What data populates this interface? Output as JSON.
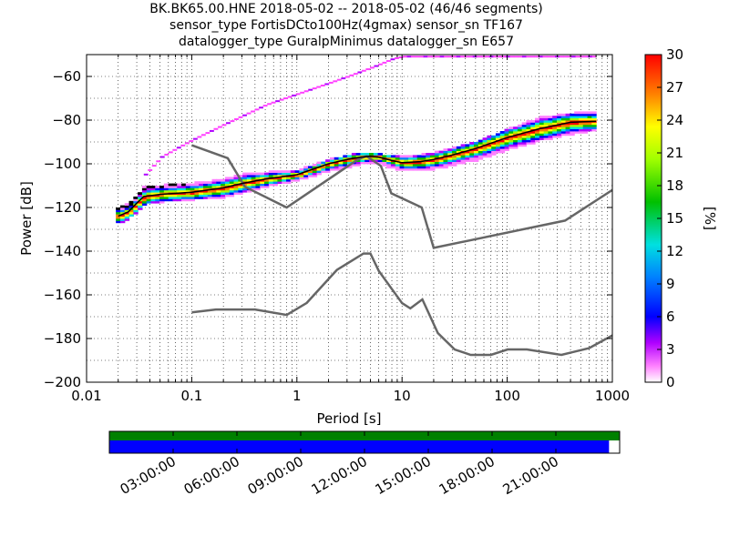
{
  "chart_data": {
    "type": "heatmap",
    "title_lines": [
      "BK.BK65.00.HNE   2018-05-02 -- 2018-05-02  (46/46 segments)",
      "sensor_type FortisDCto100Hz(4gmax) sensor_sn TF167",
      "datalogger_type GuralpMinimus datalogger_sn E657"
    ],
    "xlabel": "Period [s]",
    "ylabel": "Power [dB]",
    "x_scale": "log",
    "xlim": [
      0.01,
      1000
    ],
    "ylim": [
      -200,
      -50
    ],
    "x_ticks": [
      0.01,
      0.1,
      1,
      10,
      100,
      1000
    ],
    "x_tick_labels": [
      "0.01",
      "0.1",
      "1",
      "10",
      "100",
      "1000"
    ],
    "y_ticks": [
      -200,
      -180,
      -160,
      -140,
      -120,
      -100,
      -80,
      -60
    ],
    "y_tick_labels": [
      "−200",
      "−180",
      "−160",
      "−140",
      "−120",
      "−100",
      "−80",
      "−60"
    ],
    "grid": true,
    "colorbar": {
      "label": "[%]",
      "range": [
        0,
        30
      ],
      "ticks": [
        "0",
        "3",
        "6",
        "9",
        "12",
        "15",
        "18",
        "21",
        "24",
        "27",
        "30"
      ]
    },
    "noise_models": [
      {
        "name": "",
        "x": [
          0.1,
          0.17,
          0.4,
          0.8,
          1.24,
          2.4,
          4.3,
          5.0,
          6.0,
          10.0,
          12.0,
          15.6,
          21.9,
          31.6,
          45.0,
          70.0,
          101.0,
          154.0,
          328.0,
          600.0,
          1000.0
        ],
        "y": [
          -168.0,
          -166.7,
          -166.7,
          -169.2,
          -163.7,
          -148.6,
          -141.1,
          -141.1,
          -149.0,
          -163.8,
          -166.2,
          -162.1,
          -177.5,
          -185.0,
          -187.5,
          -187.5,
          -185.0,
          -185.0,
          -187.5,
          -184.4,
          -178.6
        ]
      },
      {
        "name": "",
        "x": [
          0.1,
          0.22,
          0.32,
          0.8,
          3.8,
          4.6,
          6.3,
          7.9,
          15.4,
          20.0,
          354.8,
          1000.0
        ],
        "y": [
          -91.5,
          -97.4,
          -110.5,
          -120.0,
          -98.0,
          -96.5,
          -101.0,
          -113.5,
          -120.0,
          -138.5,
          -126.0,
          -112.0
        ]
      }
    ],
    "ppsd_mode": {
      "x": [
        0.02,
        0.025,
        0.03,
        0.035,
        0.05,
        0.1,
        0.2,
        0.3,
        0.5,
        1.0,
        2.0,
        3.0,
        4.0,
        5.0,
        6.0,
        8.0,
        10.0,
        15.0,
        20.0,
        30.0,
        50.0,
        100.0,
        200.0,
        400.0,
        700.0
      ],
      "y": [
        -124.0,
        -122.0,
        -118.0,
        -115.0,
        -114.0,
        -113.0,
        -111.0,
        -109.0,
        -107.0,
        -105.0,
        -100.0,
        -98.0,
        -97.0,
        -96.5,
        -97.0,
        -98.5,
        -99.5,
        -99.0,
        -98.0,
        -96.0,
        -93.0,
        -88.0,
        -84.0,
        -81.0,
        -80.5
      ]
    },
    "ppsd_spread": [
      {
        "x": 0.02,
        "lo": -127,
        "hi": -120
      },
      {
        "x": 0.025,
        "lo": -124,
        "hi": -118
      },
      {
        "x": 0.03,
        "lo": -121,
        "hi": -114
      },
      {
        "x": 0.035,
        "lo": -118,
        "hi": -110
      },
      {
        "x": 0.05,
        "lo": -117,
        "hi": -110
      },
      {
        "x": 0.1,
        "lo": -116,
        "hi": -109
      },
      {
        "x": 0.2,
        "lo": -115,
        "hi": -107
      },
      {
        "x": 0.3,
        "lo": -113,
        "hi": -105
      },
      {
        "x": 0.5,
        "lo": -110,
        "hi": -104
      },
      {
        "x": 1.0,
        "lo": -107,
        "hi": -103
      },
      {
        "x": 2.0,
        "lo": -103,
        "hi": -98
      },
      {
        "x": 4.0,
        "lo": -100,
        "hi": -95
      },
      {
        "x": 6.0,
        "lo": -100,
        "hi": -96
      },
      {
        "x": 10.0,
        "lo": -103,
        "hi": -97
      },
      {
        "x": 20.0,
        "lo": -102,
        "hi": -95
      },
      {
        "x": 50.0,
        "lo": -98,
        "hi": -90
      },
      {
        "x": 100.0,
        "lo": -93,
        "hi": -84
      },
      {
        "x": 200.0,
        "lo": -89,
        "hi": -79
      },
      {
        "x": 400.0,
        "lo": -86,
        "hi": -77
      },
      {
        "x": 700.0,
        "lo": -84,
        "hi": -76
      }
    ],
    "ppsd_outliers_high": {
      "x": [
        0.035,
        0.05,
        0.07,
        0.1,
        0.2,
        0.3,
        0.5,
        1.0,
        2.0,
        3.0,
        5.0,
        8.0,
        10.0,
        20.0,
        50.0,
        100.0,
        200.0,
        700.0
      ],
      "y": [
        -105,
        -97,
        -93,
        -89,
        -82,
        -78,
        -73,
        -68,
        -63,
        -60,
        -56,
        -52,
        -51,
        -51,
        -51,
        -51,
        -51,
        -51
      ]
    },
    "coverage": {
      "time_ticks": [
        "03:00:00",
        "06:00:00",
        "09:00:00",
        "12:00:00",
        "15:00:00",
        "18:00:00",
        "21:00:00"
      ],
      "time_tick_hours": [
        3,
        6,
        9,
        12,
        15,
        18,
        21
      ],
      "span_hours": [
        0,
        24
      ],
      "data_end_hours": 23.5,
      "colors": {
        "top": "#008000",
        "bottom": "#0000ff"
      }
    }
  }
}
